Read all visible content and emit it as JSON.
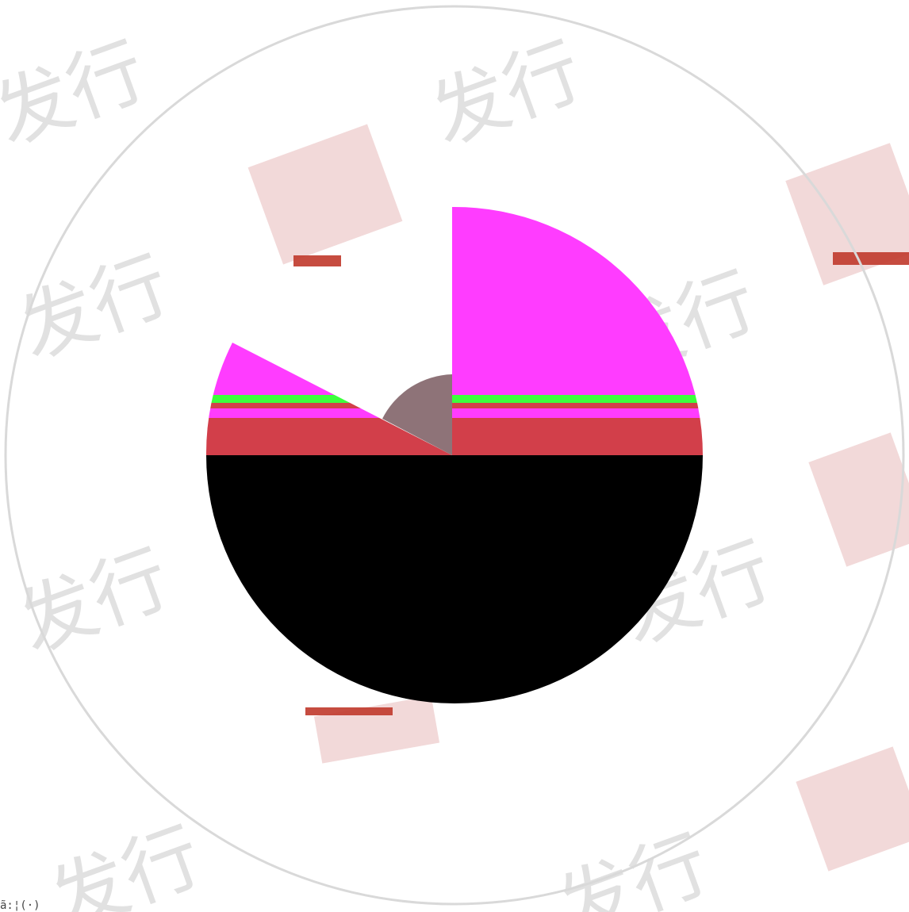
{
  "watermark": {
    "text": "发行"
  },
  "corner_text": "ã:¦(·)",
  "colors": {
    "ring": "#d9d9d9",
    "black": "#000000",
    "red": "#d23f4a",
    "magenta": "#ff3cff",
    "green": "#3cff3c",
    "hub": "#7a5a60"
  }
}
